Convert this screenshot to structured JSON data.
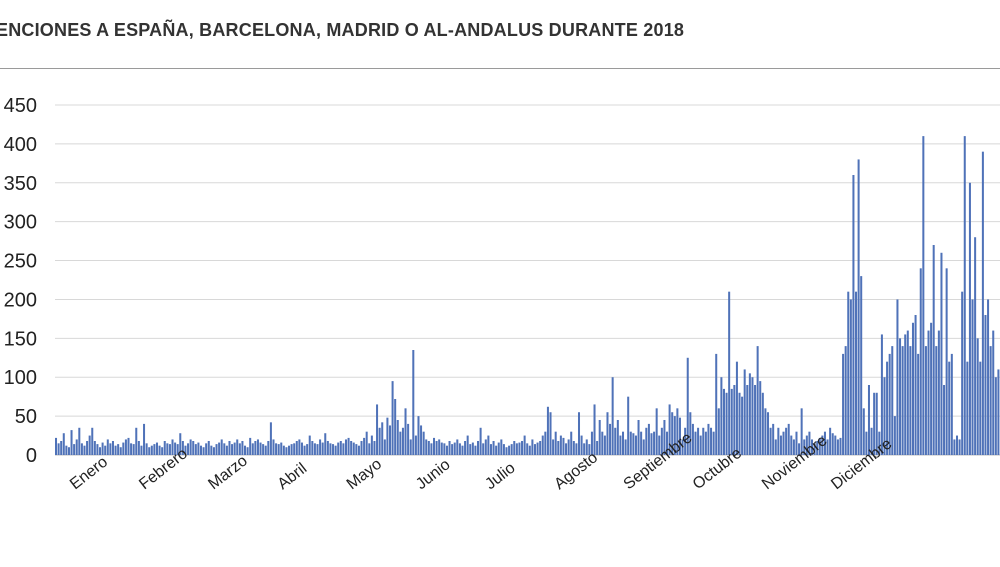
{
  "chart_data": {
    "type": "bar",
    "title": "ENCIONES A ESPAÑA, BARCELONA, MADRID O AL-ANDALUS DURANTE 2018",
    "xlabel": "",
    "ylabel": "",
    "ylim": [
      0,
      450
    ],
    "yticks": [
      0,
      50,
      100,
      150,
      200,
      250,
      300,
      350,
      400,
      450
    ],
    "grid": true,
    "legend": "none",
    "bar_color": "#4f72b8",
    "months": [
      "Enero",
      "Febrero",
      "Marzo",
      "Abril",
      "Mayo",
      "Junio",
      "Julio",
      "Agosto",
      "Septiembre",
      "Octubre",
      "Noviembre",
      "Diciembre"
    ],
    "series": [
      {
        "values": [
          22,
          15,
          18,
          28,
          12,
          10,
          32,
          14,
          20,
          35,
          15,
          12,
          18,
          25,
          35,
          18,
          14,
          10,
          16,
          12,
          20,
          15,
          18,
          12,
          14,
          10,
          16,
          20,
          22,
          15,
          14,
          35,
          18,
          12,
          40,
          15,
          10,
          12,
          14,
          16,
          12,
          10,
          18,
          15,
          14,
          20,
          16,
          14,
          28,
          18,
          12,
          15,
          20,
          18,
          14,
          16,
          12,
          10,
          15,
          18,
          12,
          10,
          14,
          16,
          20,
          15,
          12,
          18,
          14,
          16,
          20,
          15,
          18,
          12,
          10,
          22,
          15,
          18,
          20,
          16,
          14,
          12,
          18,
          42,
          20,
          15,
          14,
          16,
          12,
          10,
          12,
          14,
          15,
          18,
          20,
          16,
          12,
          14,
          25,
          18,
          15,
          14,
          20,
          16,
          28,
          18,
          15,
          14,
          12,
          16,
          18,
          15,
          20,
          22,
          18,
          16,
          14,
          12,
          18,
          22,
          30,
          15,
          25,
          18,
          65,
          35,
          42,
          20,
          48,
          38,
          95,
          72,
          45,
          30,
          35,
          60,
          40,
          20,
          135,
          25,
          50,
          38,
          30,
          20,
          18,
          15,
          22,
          18,
          20,
          16,
          15,
          12,
          18,
          14,
          16,
          20,
          15,
          12,
          18,
          25,
          14,
          16,
          12,
          18,
          35,
          15,
          20,
          25,
          14,
          18,
          12,
          16,
          20,
          14,
          10,
          12,
          14,
          18,
          15,
          16,
          18,
          25,
          15,
          12,
          20,
          14,
          16,
          18,
          25,
          30,
          62,
          55,
          20,
          30,
          18,
          25,
          22,
          15,
          20,
          30,
          18,
          15,
          55,
          25,
          15,
          20,
          14,
          30,
          65,
          18,
          45,
          30,
          25,
          55,
          40,
          100,
          35,
          45,
          25,
          30,
          20,
          75,
          30,
          28,
          25,
          45,
          30,
          20,
          35,
          40,
          28,
          30,
          60,
          25,
          35,
          45,
          30,
          65,
          55,
          50,
          60,
          48,
          20,
          35,
          125,
          55,
          40,
          30,
          35,
          25,
          35,
          30,
          40,
          35,
          30,
          130,
          60,
          100,
          85,
          80,
          210,
          85,
          90,
          120,
          80,
          75,
          110,
          90,
          105,
          100,
          90,
          140,
          95,
          80,
          60,
          55,
          35,
          40,
          20,
          35,
          25,
          30,
          35,
          40,
          25,
          20,
          30,
          15,
          60,
          20,
          25,
          30,
          20,
          15,
          18,
          22,
          25,
          30,
          20,
          35,
          28,
          25,
          20,
          22,
          130,
          140,
          210,
          200,
          360,
          210,
          380,
          230,
          60,
          30,
          90,
          35,
          80,
          80,
          30,
          155,
          100,
          120,
          130,
          140,
          50,
          200,
          150,
          140,
          155,
          160,
          140,
          170,
          180,
          130,
          240,
          410,
          140,
          160,
          170,
          270,
          140,
          160,
          260,
          90,
          240,
          120,
          130,
          20,
          25,
          20,
          210,
          410,
          120,
          350,
          200,
          280,
          150,
          120,
          390,
          180,
          200,
          140,
          160,
          100,
          110
        ]
      }
    ]
  }
}
